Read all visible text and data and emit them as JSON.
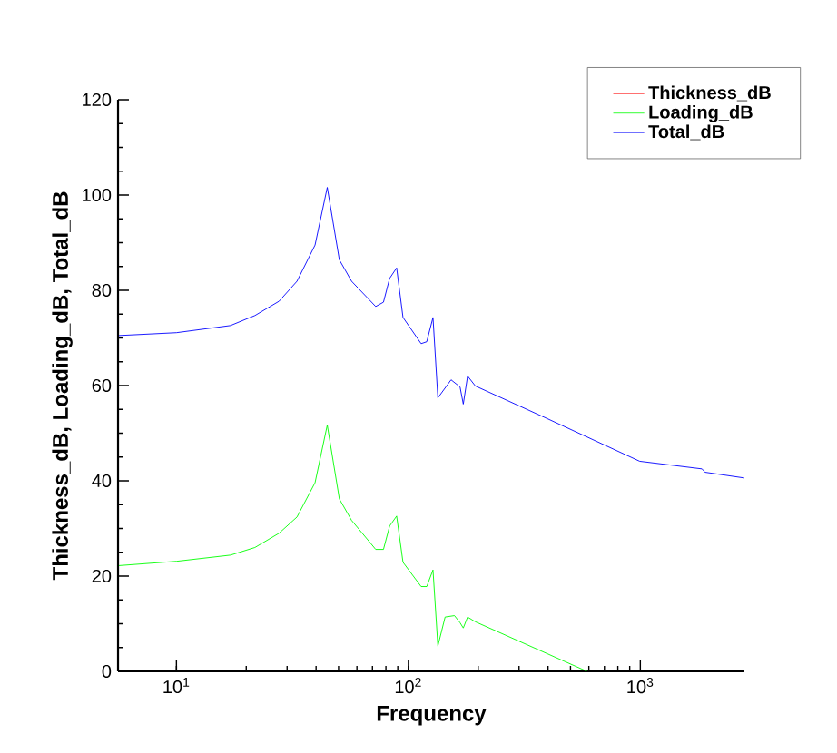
{
  "chart_data": {
    "type": "line",
    "xlabel": "Frequency",
    "ylabel": "Thickness_dB, Loading_dB, Total_dB",
    "log": "x",
    "legend": "top right",
    "xlim": [
      5.6,
      2810
    ],
    "xticks": [
      {
        "value": 10,
        "label": "10$^{1}$"
      },
      {
        "value": 100,
        "label": "10$^{2}$"
      },
      {
        "value": 1000,
        "label": "10$^{3}$"
      }
    ],
    "ylim": [
      0,
      120
    ],
    "yticks": [
      0,
      20,
      40,
      60,
      80,
      100,
      120
    ],
    "series": [
      {
        "name": "Thickness_dB",
        "color": "#ff0000",
        "values": [
          null,
          null,
          null,
          null,
          null,
          null,
          null,
          null,
          null,
          null,
          null,
          null,
          null,
          null,
          null,
          null,
          null,
          null,
          null,
          null,
          null,
          null,
          null,
          null,
          null,
          null,
          null,
          null,
          null
        ]
      },
      {
        "name": "Loading_dB",
        "color": "#00ff00",
        "x": [
          5.65,
          10,
          17.1,
          21.8,
          27.7,
          33.1,
          39.6,
          44.7,
          50.4,
          56.9,
          72.3,
          78.1,
          83,
          89,
          94.8,
          113.5,
          120,
          127.7,
          134,
          144,
          158,
          167,
          172.5,
          180,
          194.5,
          589
        ],
        "values": [
          22.2,
          23.1,
          24.4,
          26,
          29,
          32.4,
          39.6,
          51.7,
          36.2,
          31.7,
          25.6,
          25.6,
          30.5,
          32.6,
          22.9,
          17.8,
          17.8,
          21.3,
          5.3,
          11.4,
          11.7,
          10.2,
          9.1,
          11.4,
          10.4,
          0
        ]
      },
      {
        "name": "Total_dB",
        "color": "#0000ff",
        "x": [
          5.65,
          10,
          17.1,
          21.8,
          27.7,
          33.1,
          39.6,
          44.7,
          50.4,
          56.9,
          72.3,
          78.1,
          83,
          89,
          94.8,
          113.5,
          120,
          127.7,
          134,
          152.8,
          167,
          172.5,
          180,
          194.5,
          387,
          994,
          1845,
          1900,
          2806
        ],
        "values": [
          70.5,
          71.1,
          72.6,
          74.7,
          77.7,
          81.9,
          89.5,
          101.6,
          86.4,
          81.9,
          76.6,
          77.5,
          82.5,
          84.7,
          74.3,
          68.8,
          69.2,
          74.3,
          57.4,
          61.2,
          59.7,
          56.1,
          62,
          59.9,
          53.3,
          44.1,
          42.5,
          41.8,
          40.6
        ]
      }
    ]
  }
}
